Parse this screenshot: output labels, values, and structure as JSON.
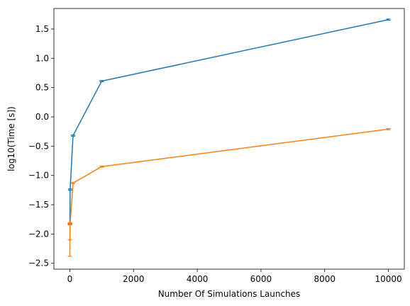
{
  "chart_data": {
    "type": "line",
    "title": "",
    "xlabel": "Number Of Simulations Launches",
    "ylabel": "log10(Time [s])",
    "xlim": [
      -500,
      10500
    ],
    "ylim": [
      -2.6,
      1.85
    ],
    "grid": false,
    "xticks": [
      0,
      2000,
      4000,
      6000,
      8000,
      10000
    ],
    "xtick_labels": [
      "0",
      "2000",
      "4000",
      "6000",
      "8000",
      "10000"
    ],
    "yticks": [
      -2.5,
      -2.0,
      -1.5,
      -1.0,
      -0.5,
      0.0,
      0.5,
      1.0,
      1.5
    ],
    "ytick_labels": [
      "−2.5",
      "−2.0",
      "−1.5",
      "−1.0",
      "−0.5",
      "0.0",
      "0.5",
      "1.0",
      "1.5"
    ],
    "series": [
      {
        "color": "#1f77b4",
        "x": [
          1,
          10,
          100,
          1000,
          10000
        ],
        "y": [
          -1.83,
          -1.24,
          -0.32,
          0.61,
          1.66
        ],
        "err_low": [
          -1.84,
          -1.25,
          -0.33,
          0.6,
          1.65
        ],
        "err_high": [
          -1.82,
          -1.23,
          -0.31,
          0.62,
          1.67
        ]
      },
      {
        "color": "#ff7f0e",
        "x": [
          1,
          10,
          100,
          1000,
          10000
        ],
        "y": [
          -2.1,
          -1.82,
          -1.13,
          -0.85,
          -0.21
        ],
        "err_low": [
          -2.38,
          -1.83,
          -1.14,
          -0.86,
          -0.22
        ],
        "err_high": [
          -2.1,
          -1.81,
          -1.12,
          -0.84,
          -0.2
        ]
      }
    ]
  }
}
